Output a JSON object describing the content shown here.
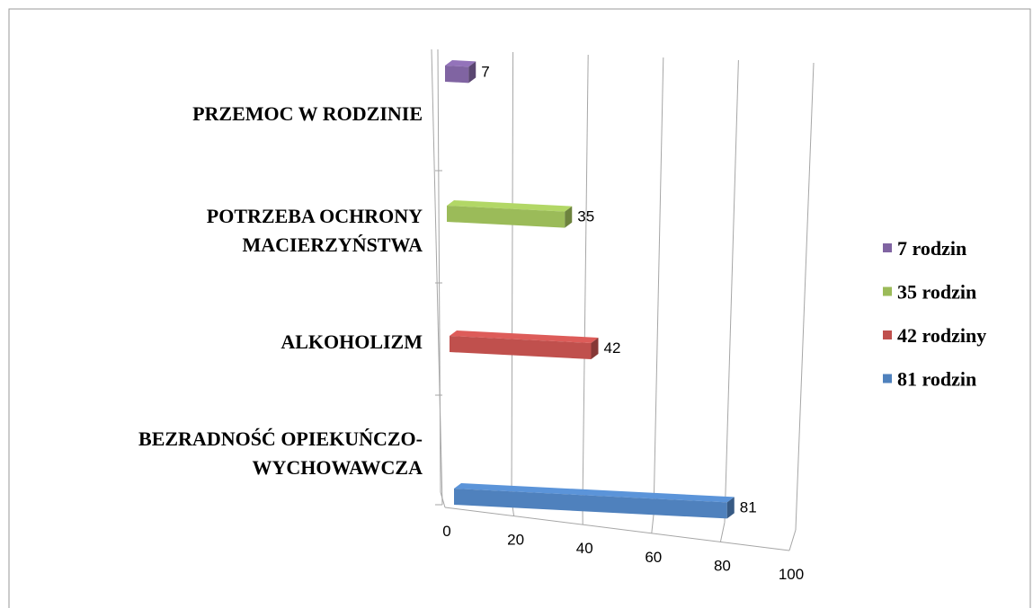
{
  "chart_data": {
    "type": "bar3d",
    "categories": [
      "BEZRADNOŚĆ OPIEKUŃCZO-WYCHOWAWCZA",
      "ALKOHOLIZM",
      "POTRZEBA OCHRONY MACIERZYŃSTWA",
      "PRZEMOC W RODZINIE"
    ],
    "series": [
      {
        "name": "7 rodzin",
        "color": "#8064a2",
        "values": [
          null,
          null,
          null,
          7
        ]
      },
      {
        "name": "35 rodzin",
        "color": "#9bbb59",
        "values": [
          null,
          null,
          35,
          null
        ]
      },
      {
        "name": "42 rodziny",
        "color": "#c0504d",
        "values": [
          null,
          42,
          null,
          null
        ]
      },
      {
        "name": "81 rodzin",
        "color": "#4f81bd",
        "values": [
          81,
          null,
          null,
          null
        ]
      }
    ],
    "xlim": [
      0,
      100
    ],
    "xticks": [
      0,
      20,
      40,
      60,
      80,
      100
    ],
    "grid": true,
    "legend": "right"
  }
}
